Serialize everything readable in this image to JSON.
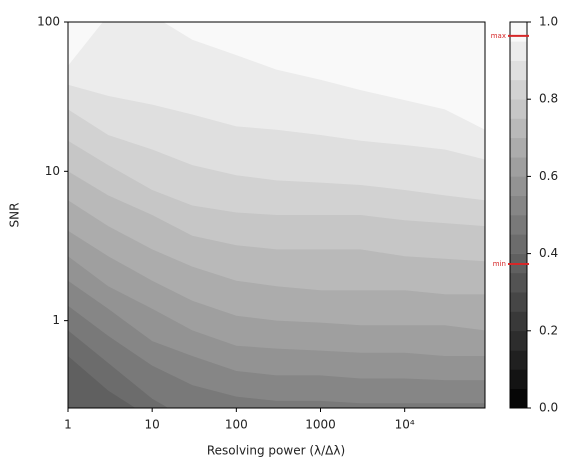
{
  "chart_data": {
    "type": "contourf",
    "xlabel": "Resolving power (λ/Δλ)",
    "ylabel": "SNR",
    "xscale": "log",
    "yscale": "log",
    "xlim": [
      1,
      90000
    ],
    "ylim": [
      0.26,
      100
    ],
    "xticks": [
      1,
      10,
      100,
      1000,
      {
        "value": 10000,
        "label": "10⁴"
      }
    ],
    "yticks": [
      1,
      10,
      100
    ],
    "colormap": "gray",
    "levels": [
      0,
      0.05,
      0.1,
      0.15,
      0.2,
      0.25,
      0.3,
      0.35,
      0.4,
      0.45,
      0.5,
      0.55,
      0.6,
      0.65,
      0.7,
      0.75,
      0.8,
      0.85,
      0.9,
      0.95,
      1.0
    ],
    "colorbar_ticks": [
      {
        "value": 0,
        "label": "0.0"
      },
      0.2,
      0.4,
      0.6,
      0.8,
      {
        "value": 1,
        "label": "1.0"
      }
    ],
    "markers": [
      {
        "label": "max",
        "value": 0.964,
        "color": "#d62728"
      },
      {
        "label": "min",
        "value": 0.373,
        "color": "#d62728"
      }
    ],
    "x": [
      1,
      3,
      10,
      30,
      100,
      300,
      1000,
      3000,
      10000,
      30000,
      90000
    ],
    "series": [
      {
        "level": 0.4,
        "values": [
          0.58,
          0.34,
          0.22,
          0.15,
          0.12,
          0.12,
          0.12,
          0.12,
          0.12,
          0.12,
          0.12
        ]
      },
      {
        "level": 0.45,
        "values": [
          0.86,
          0.52,
          0.3,
          0.21,
          0.18,
          0.17,
          0.17,
          0.17,
          0.17,
          0.17,
          0.17
        ]
      },
      {
        "level": 0.5,
        "values": [
          1.26,
          0.79,
          0.5,
          0.37,
          0.31,
          0.29,
          0.29,
          0.28,
          0.28,
          0.28,
          0.28
        ]
      },
      {
        "level": 0.55,
        "values": [
          1.85,
          1.2,
          0.73,
          0.58,
          0.46,
          0.43,
          0.43,
          0.41,
          0.41,
          0.4,
          0.4
        ]
      },
      {
        "level": 0.6,
        "values": [
          2.7,
          1.7,
          1.2,
          0.86,
          0.68,
          0.65,
          0.63,
          0.61,
          0.61,
          0.58,
          0.58
        ]
      },
      {
        "level": 0.65,
        "values": [
          4,
          2.7,
          1.85,
          1.36,
          1.08,
          1,
          0.97,
          0.93,
          0.93,
          0.93,
          0.86
        ]
      },
      {
        "level": 0.7,
        "values": [
          6.4,
          4.3,
          3,
          2.3,
          1.85,
          1.7,
          1.6,
          1.6,
          1.6,
          1.5,
          1.5
        ]
      },
      {
        "level": 0.75,
        "values": [
          10,
          6.9,
          5.1,
          3.7,
          3.2,
          3,
          3,
          3,
          2.7,
          2.6,
          2.5
        ]
      },
      {
        "level": 0.8,
        "values": [
          16,
          11,
          7.5,
          5.9,
          5.3,
          5.1,
          5.1,
          5.1,
          4.7,
          4.5,
          4.3
        ]
      },
      {
        "level": 0.85,
        "values": [
          26,
          17.5,
          14,
          11,
          9.4,
          8.7,
          8.4,
          8.1,
          7.5,
          6.9,
          6.4
        ]
      },
      {
        "level": 0.9,
        "values": [
          38,
          32,
          28,
          24,
          20,
          19,
          17.5,
          16,
          15,
          14,
          12
        ]
      },
      {
        "level": 0.95,
        "values": [
          51,
          111,
          111,
          76,
          60,
          48,
          41,
          35,
          30,
          26,
          19
        ]
      }
    ]
  }
}
